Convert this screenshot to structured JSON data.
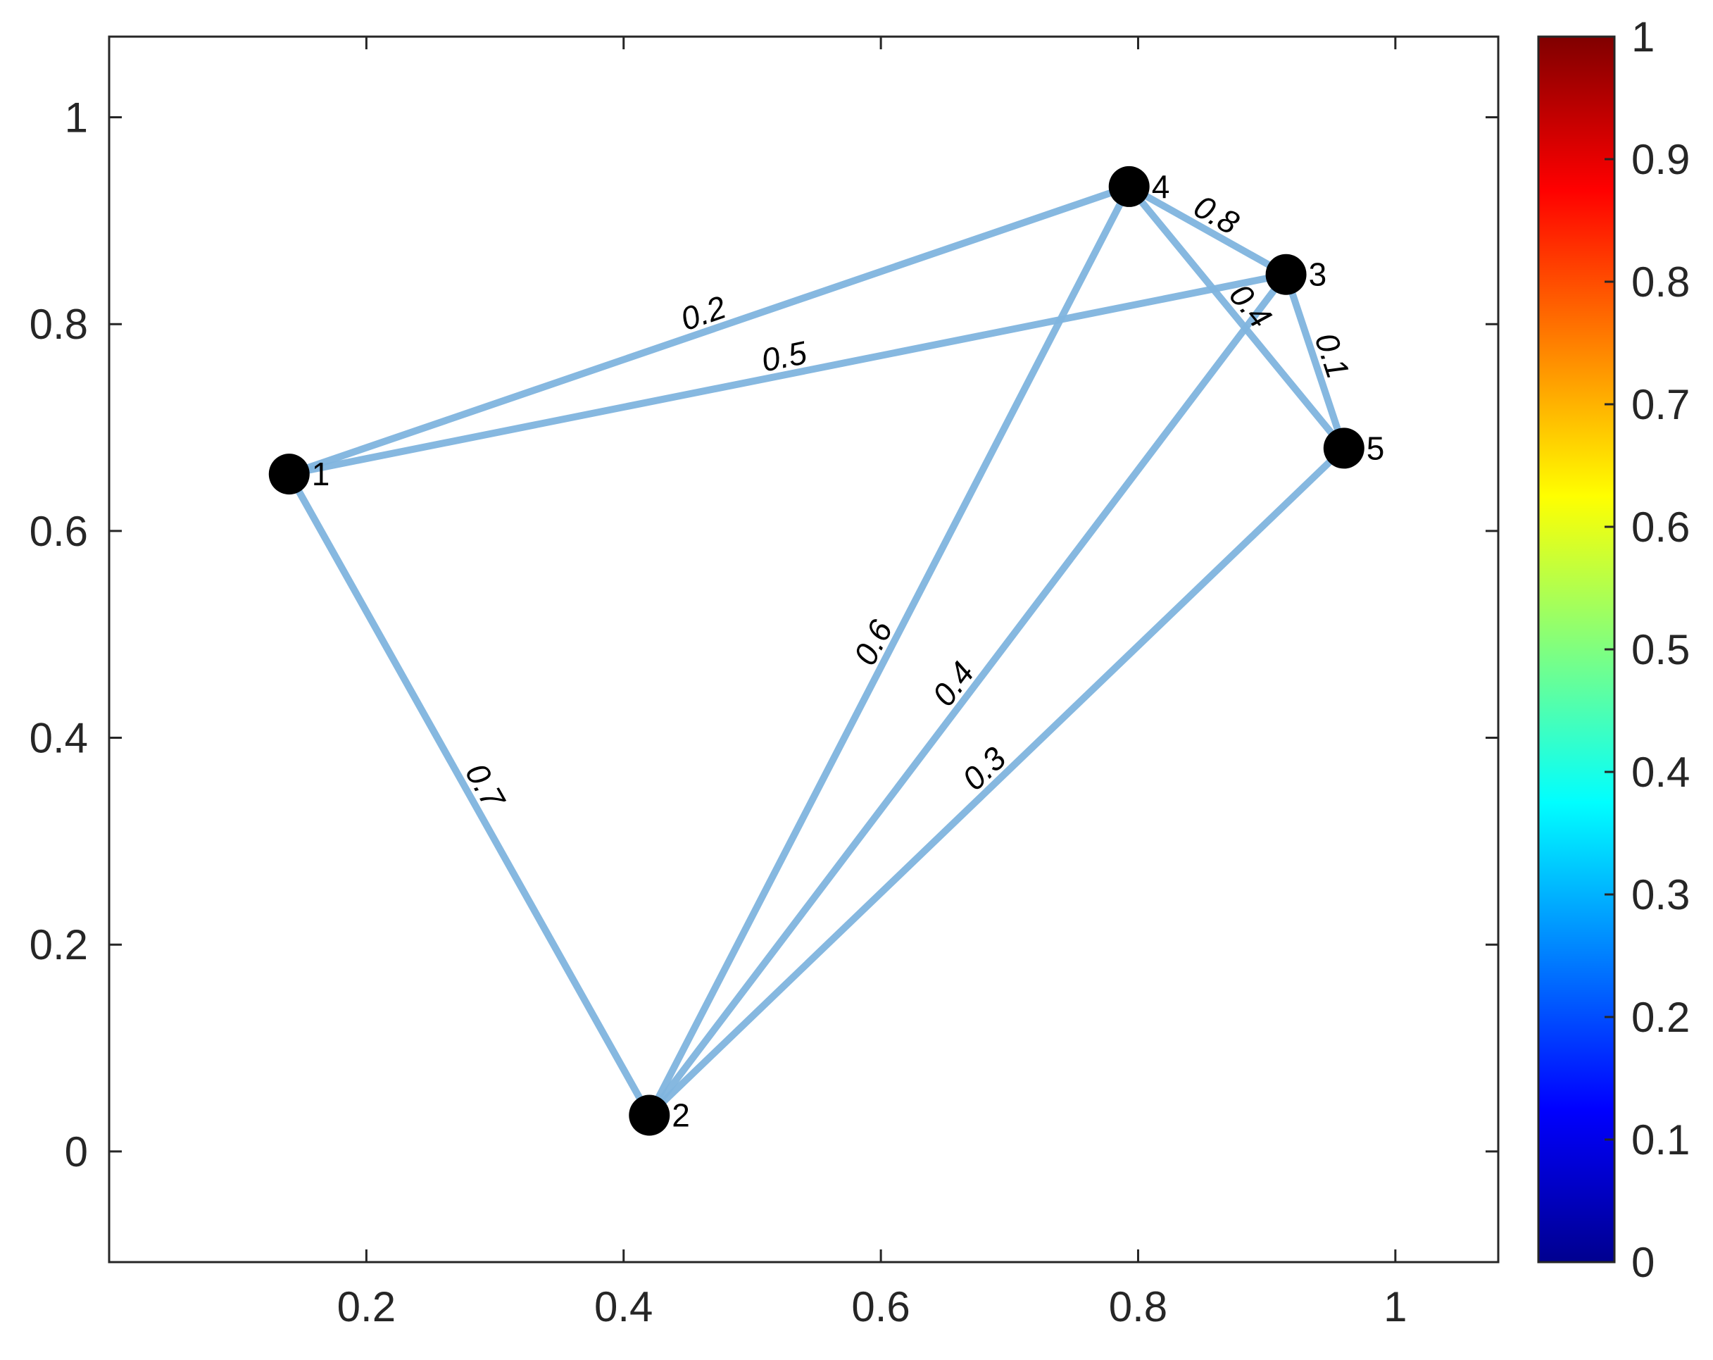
{
  "chart_data": {
    "type": "network",
    "title": "",
    "xlabel": "",
    "ylabel": "",
    "xlim": [
      0.0,
      1.08
    ],
    "ylim": [
      -0.107,
      1.078
    ],
    "xticks": [
      "0.2",
      "0.4",
      "0.6",
      "0.8",
      "1"
    ],
    "xtick_values": [
      0.2,
      0.4,
      0.6,
      0.8,
      1.0
    ],
    "yticks": [
      "0",
      "0.2",
      "0.4",
      "0.6",
      "0.8",
      "1"
    ],
    "ytick_values": [
      0,
      0.2,
      0.4,
      0.6,
      0.8,
      1.0
    ],
    "grid": false,
    "nodes": [
      {
        "label": "1",
        "x": 0.14,
        "y": 0.655
      },
      {
        "label": "2",
        "x": 0.42,
        "y": 0.035
      },
      {
        "label": "3",
        "x": 0.915,
        "y": 0.848
      },
      {
        "label": "4",
        "x": 0.793,
        "y": 0.933
      },
      {
        "label": "5",
        "x": 0.96,
        "y": 0.68
      }
    ],
    "edges": [
      {
        "source": "1",
        "target": "4",
        "weight": "0.2"
      },
      {
        "source": "1",
        "target": "3",
        "weight": "0.5"
      },
      {
        "source": "1",
        "target": "2",
        "weight": "0.7"
      },
      {
        "source": "2",
        "target": "4",
        "weight": "0.6"
      },
      {
        "source": "2",
        "target": "3",
        "weight": "0.4"
      },
      {
        "source": "2",
        "target": "5",
        "weight": "0.3"
      },
      {
        "source": "4",
        "target": "3",
        "weight": "0.8"
      },
      {
        "source": "4",
        "target": "5",
        "weight": "0.4"
      },
      {
        "source": "3",
        "target": "5",
        "weight": "0.1"
      }
    ],
    "edge_color": "#7fb4de",
    "node_color": "#000000",
    "colorbar": {
      "range": [
        0,
        1
      ],
      "ticks": [
        "0",
        "0.1",
        "0.2",
        "0.3",
        "0.4",
        "0.5",
        "0.6",
        "0.7",
        "0.8",
        "0.9",
        "1"
      ],
      "tick_values": [
        0,
        0.1,
        0.2,
        0.3,
        0.4,
        0.5,
        0.6,
        0.7,
        0.8,
        0.9,
        1.0
      ],
      "colormap": "jet",
      "placement": "right"
    }
  }
}
